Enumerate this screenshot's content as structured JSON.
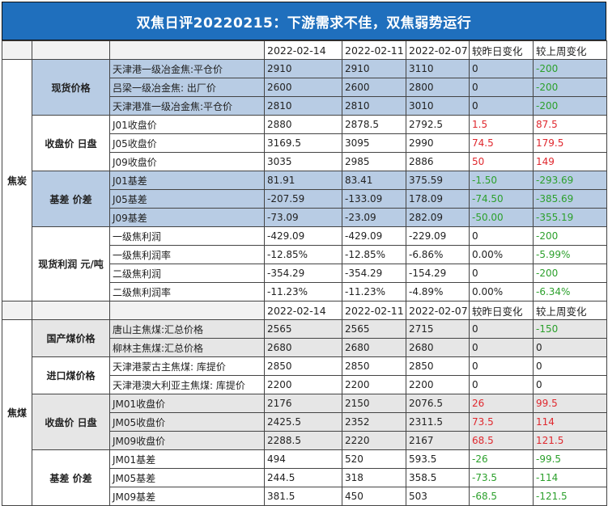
{
  "title": "双焦日评20220215：下游需求不佳，双焦弱势运行",
  "header": [
    "2022-02-14",
    "2022-02-11",
    "2022-02-07",
    "较昨日变化",
    "较上周变化"
  ],
  "sections": [
    {
      "category": "焦炭",
      "groups": [
        {
          "name": "现货价格",
          "shade": "blue",
          "rows": [
            {
              "label": "天津港一级冶金焦:平仓价",
              "v1": "2910",
              "v2": "2910",
              "v3": "3110",
              "d1": "0",
              "d2": "-200",
              "c1": "neu",
              "c2": "neg"
            },
            {
              "label": "吕梁一级冶金焦: 出厂价",
              "v1": "2600",
              "v2": "2600",
              "v3": "2800",
              "d1": "0",
              "d2": "-200",
              "c1": "neu",
              "c2": "neg"
            },
            {
              "label": "天津港准一级冶金焦:平仓价",
              "v1": "2810",
              "v2": "2810",
              "v3": "3010",
              "d1": "0",
              "d2": "-200",
              "c1": "neu",
              "c2": "neg"
            }
          ]
        },
        {
          "name": "收盘价 日盘",
          "shade": "white",
          "rows": [
            {
              "label": "J01收盘价",
              "v1": "2880",
              "v2": "2878.5",
              "v3": "2792.5",
              "d1": "1.5",
              "d2": "87.5",
              "c1": "pos",
              "c2": "pos"
            },
            {
              "label": "J05收盘价",
              "v1": "3169.5",
              "v2": "3095",
              "v3": "2990",
              "d1": "74.5",
              "d2": "179.5",
              "c1": "pos",
              "c2": "pos"
            },
            {
              "label": "J09收盘价",
              "v1": "3035",
              "v2": "2985",
              "v3": "2886",
              "d1": "50",
              "d2": "149",
              "c1": "pos",
              "c2": "pos"
            }
          ]
        },
        {
          "name": "基差 价差",
          "shade": "blue",
          "rows": [
            {
              "label": "J01基差",
              "v1": "81.91",
              "v2": "83.41",
              "v3": "375.59",
              "d1": "-1.50",
              "d2": "-293.69",
              "c1": "neg",
              "c2": "neg"
            },
            {
              "label": "J05基差",
              "v1": "-207.59",
              "v2": "-133.09",
              "v3": "178.09",
              "d1": "-74.50",
              "d2": "-385.69",
              "c1": "neg",
              "c2": "neg"
            },
            {
              "label": "J09基差",
              "v1": "-73.09",
              "v2": "-23.09",
              "v3": "282.09",
              "d1": "-50.00",
              "d2": "-355.19",
              "c1": "neg",
              "c2": "neg"
            }
          ]
        },
        {
          "name": "现货利润 元/吨",
          "shade": "white",
          "rows": [
            {
              "label": "一级焦利润",
              "v1": "-429.09",
              "v2": "-429.09",
              "v3": "-229.09",
              "d1": "0",
              "d2": "-200",
              "c1": "neu",
              "c2": "neg"
            },
            {
              "label": "一级焦利润率",
              "v1": "-12.85%",
              "v2": "-12.85%",
              "v3": "-6.86%",
              "d1": "0.00%",
              "d2": "-5.99%",
              "c1": "neu",
              "c2": "neg"
            },
            {
              "label": "二级焦利润",
              "v1": "-354.29",
              "v2": "-354.29",
              "v3": "-154.29",
              "d1": "0",
              "d2": "-200",
              "c1": "neu",
              "c2": "neg"
            },
            {
              "label": "二级焦利润率",
              "v1": "-11.23%",
              "v2": "-11.23%",
              "v3": "-4.89%",
              "d1": "0.00%",
              "d2": "-6.34%",
              "c1": "neu",
              "c2": "neg"
            }
          ]
        }
      ]
    },
    {
      "category": "焦煤",
      "groups": [
        {
          "name": "国产煤价格",
          "shade": "gray",
          "rows": [
            {
              "label": "唐山主焦煤:汇总价格",
              "v1": "2565",
              "v2": "2565",
              "v3": "2715",
              "d1": "0",
              "d2": "-150",
              "c1": "neu",
              "c2": "neg"
            },
            {
              "label": "柳林主焦煤:汇总价格",
              "v1": "2680",
              "v2": "2680",
              "v3": "2680",
              "d1": "0",
              "d2": "0",
              "c1": "neu",
              "c2": "neu"
            }
          ]
        },
        {
          "name": "进口煤价格",
          "shade": "white",
          "rows": [
            {
              "label": "天津港蒙古主焦煤: 库提价",
              "v1": "2850",
              "v2": "2850",
              "v3": "2850",
              "d1": "0",
              "d2": "0",
              "c1": "neu",
              "c2": "neu"
            },
            {
              "label": "天津港澳大利亚主焦煤: 库提价",
              "v1": "2200",
              "v2": "2200",
              "v3": "2200",
              "d1": "0",
              "d2": "0",
              "c1": "neu",
              "c2": "neu"
            }
          ]
        },
        {
          "name": "收盘价 日盘",
          "shade": "gray",
          "rows": [
            {
              "label": "JM01收盘价",
              "v1": "2176",
              "v2": "2150",
              "v3": "2076.5",
              "d1": "26",
              "d2": "99.5",
              "c1": "pos",
              "c2": "pos"
            },
            {
              "label": "JM05收盘价",
              "v1": "2425.5",
              "v2": "2352",
              "v3": "2311.5",
              "d1": "73.5",
              "d2": "114",
              "c1": "pos",
              "c2": "pos"
            },
            {
              "label": "JM09收盘价",
              "v1": "2288.5",
              "v2": "2220",
              "v3": "2167",
              "d1": "68.5",
              "d2": "121.5",
              "c1": "pos",
              "c2": "pos"
            }
          ]
        },
        {
          "name": "基差 价差",
          "shade": "white",
          "rows": [
            {
              "label": "JM01基差",
              "v1": "494",
              "v2": "520",
              "v3": "593.5",
              "d1": "-26",
              "d2": "-99.5",
              "c1": "neg",
              "c2": "neg"
            },
            {
              "label": "JM05基差",
              "v1": "244.5",
              "v2": "318",
              "v3": "358.5",
              "d1": "-73.5",
              "d2": "-114",
              "c1": "neg",
              "c2": "neg"
            },
            {
              "label": "JM09基差",
              "v1": "381.5",
              "v2": "450",
              "v3": "503",
              "d1": "-68.5",
              "d2": "-121.5",
              "c1": "neg",
              "c2": "neg"
            }
          ]
        }
      ]
    }
  ]
}
